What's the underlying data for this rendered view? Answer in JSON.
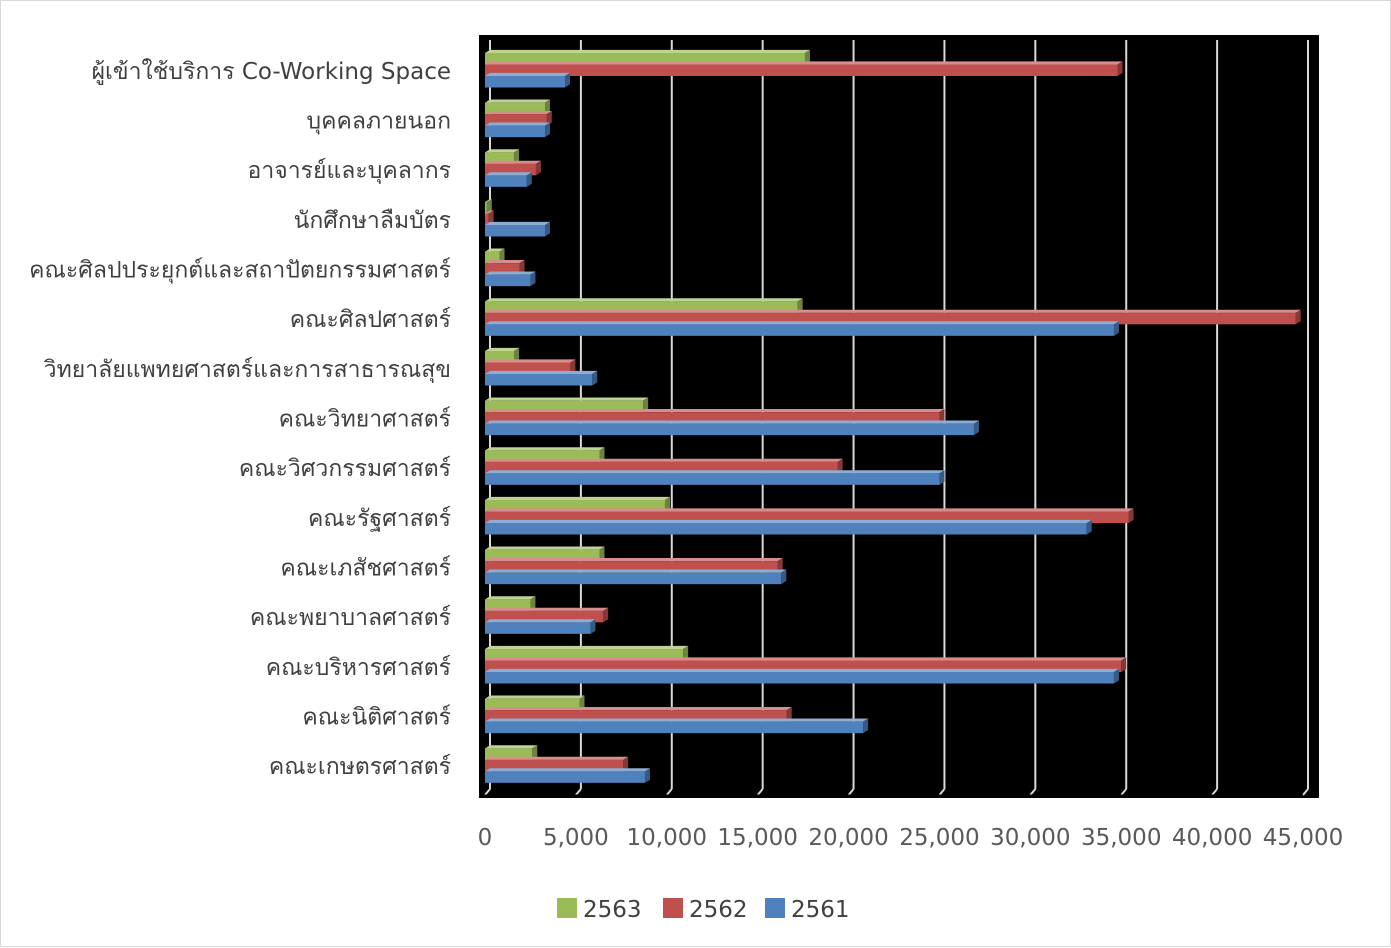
{
  "chart_data": {
    "type": "bar",
    "orientation": "horizontal",
    "background": "#000000",
    "grid": true,
    "legend_position": "bottom",
    "title": "",
    "xlabel": "",
    "ylabel": "",
    "xlim": [
      0,
      45000
    ],
    "x_ticks": [
      0,
      5000,
      10000,
      15000,
      20000,
      25000,
      30000,
      35000,
      40000,
      45000
    ],
    "x_tick_labels": [
      "0",
      "5,000",
      "10,000",
      "15,000",
      "20,000",
      "25,000",
      "30,000",
      "35,000",
      "40,000",
      "45,000"
    ],
    "categories": [
      "ผู้เข้าใช้บริการ Co-Working Space",
      "บุคคลภายนอก",
      "อาจารย์และบุคลากร",
      "นักศึกษาลืมบัตร",
      "คณะศิลปประยุกต์และสถาปัตยกรรมศาสตร์",
      "คณะศิลปศาสตร์",
      "วิทยาลัยแพทยศาสตร์และการสาธารณสุข",
      "คณะวิทยาศาสตร์",
      "คณะวิศวกรรมศาสตร์",
      "คณะรัฐศาสตร์",
      "คณะเภสัชศาสตร์",
      "คณะพยาบาลศาสตร์",
      "คณะบริหารศาสตร์",
      "คณะนิติศาสตร์",
      "คณะเกษตรศาสตร์"
    ],
    "series": [
      {
        "name": "2563",
        "color": "#9bbb59",
        "values": [
          17600,
          3300,
          1600,
          100,
          800,
          17200,
          1600,
          8700,
          6300,
          9900,
          6300,
          2500,
          10900,
          5200,
          2600
        ]
      },
      {
        "name": "2562",
        "color": "#c0504d",
        "values": [
          34800,
          3400,
          2800,
          200,
          1900,
          44600,
          4700,
          25000,
          19400,
          35400,
          16100,
          6500,
          35000,
          16600,
          7600
        ]
      },
      {
        "name": "2561",
        "color": "#4f81bd",
        "values": [
          4400,
          3300,
          2300,
          3300,
          2500,
          34600,
          5900,
          26900,
          25000,
          33100,
          16300,
          5800,
          34600,
          20800,
          8800
        ]
      }
    ],
    "legend_order": [
      "2563",
      "2562",
      "2561"
    ]
  }
}
